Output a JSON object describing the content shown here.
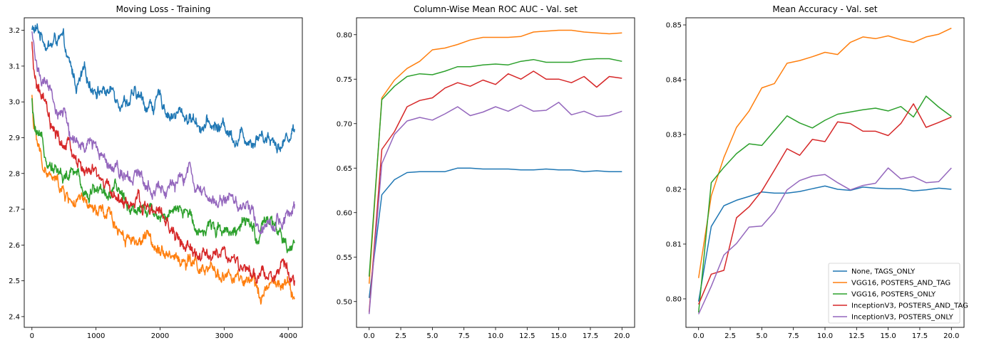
{
  "colors": {
    "blue": "#1f77b4",
    "orange": "#ff7f0e",
    "green": "#2ca02c",
    "red": "#d62728",
    "purple": "#9467bd"
  },
  "chart_data": [
    {
      "type": "line",
      "title": "Moving Loss - Training",
      "xlabel": "",
      "ylabel": "",
      "xlim": [
        -120,
        4220
      ],
      "ylim": [
        2.37,
        3.235
      ],
      "xticks": [
        0,
        1000,
        2000,
        3000,
        4000
      ],
      "yticks": [
        2.4,
        2.5,
        2.6,
        2.7,
        2.8,
        2.9,
        3.0,
        3.1,
        3.2
      ],
      "legend": false,
      "grid": false,
      "noisy": true,
      "series": [
        {
          "color": "blue",
          "x": [
            0,
            100,
            200,
            300,
            400,
            500,
            550,
            600,
            700,
            800,
            900,
            1000,
            1200,
            1500,
            1800,
            2000,
            2200,
            2400,
            2600,
            2800,
            3000,
            3200,
            3400,
            3600,
            3800,
            3900,
            3950,
            4000,
            4100
          ],
          "y": [
            3.2,
            3.19,
            3.18,
            3.16,
            3.18,
            3.15,
            3.1,
            3.08,
            3.04,
            3.06,
            3.05,
            3.05,
            3.03,
            3.02,
            2.99,
            3.0,
            2.97,
            2.96,
            2.95,
            2.93,
            2.93,
            2.91,
            2.91,
            2.92,
            2.9,
            2.88,
            2.9,
            2.91,
            2.93
          ]
        },
        {
          "color": "orange",
          "x": [
            0,
            30,
            80,
            150,
            250,
            350,
            450,
            500,
            600,
            800,
            1000,
            1200,
            1500,
            1800,
            2000,
            2200,
            2400,
            2600,
            2700,
            2800,
            3000,
            3200,
            3400,
            3500,
            3600,
            3800,
            4000,
            4100
          ],
          "y": [
            3.02,
            2.93,
            2.88,
            2.83,
            2.8,
            2.77,
            2.76,
            2.74,
            2.73,
            2.7,
            2.68,
            2.67,
            2.63,
            2.61,
            2.61,
            2.58,
            2.55,
            2.54,
            2.51,
            2.51,
            2.52,
            2.5,
            2.47,
            2.46,
            2.48,
            2.48,
            2.48,
            2.45
          ]
        },
        {
          "color": "green",
          "x": [
            0,
            30,
            100,
            200,
            300,
            400,
            500,
            700,
            800,
            1000,
            1200,
            1400,
            1500,
            1700,
            2000,
            2200,
            2400,
            2600,
            2800,
            3000,
            3200,
            3400,
            3500,
            3600,
            3800,
            3900,
            4000,
            4100
          ],
          "y": [
            3.0,
            2.93,
            2.88,
            2.85,
            2.85,
            2.82,
            2.79,
            2.79,
            2.76,
            2.76,
            2.75,
            2.73,
            2.72,
            2.71,
            2.7,
            2.68,
            2.68,
            2.66,
            2.65,
            2.66,
            2.65,
            2.64,
            2.62,
            2.63,
            2.65,
            2.6,
            2.57,
            2.59
          ]
        },
        {
          "color": "red",
          "x": [
            0,
            20,
            100,
            200,
            300,
            400,
            500,
            600,
            800,
            1000,
            1200,
            1500,
            1800,
            2000,
            2200,
            2400,
            2600,
            2800,
            3000,
            3200,
            3400,
            3500,
            3600,
            3800,
            4000,
            4100
          ],
          "y": [
            3.16,
            3.08,
            3.03,
            2.98,
            2.91,
            2.88,
            2.87,
            2.86,
            2.81,
            2.78,
            2.75,
            2.72,
            2.7,
            2.68,
            2.63,
            2.59,
            2.56,
            2.56,
            2.58,
            2.55,
            2.51,
            2.49,
            2.52,
            2.53,
            2.51,
            2.51
          ]
        },
        {
          "color": "purple",
          "x": [
            0,
            50,
            100,
            200,
            300,
            400,
            500,
            600,
            700,
            800,
            1000,
            1200,
            1400,
            1600,
            1800,
            2000,
            2200,
            2400,
            2450,
            2600,
            2800,
            3000,
            3200,
            3400,
            3500,
            3600,
            3800,
            4000,
            4100
          ],
          "y": [
            3.19,
            3.13,
            3.1,
            3.04,
            3.0,
            2.97,
            2.97,
            2.91,
            2.87,
            2.86,
            2.88,
            2.85,
            2.82,
            2.81,
            2.78,
            2.78,
            2.75,
            2.78,
            2.82,
            2.74,
            2.72,
            2.73,
            2.72,
            2.71,
            2.68,
            2.66,
            2.67,
            2.68,
            2.7
          ]
        }
      ]
    },
    {
      "type": "line",
      "title": "Column-Wise Mean ROC AUC - Val. set",
      "xlabel": "",
      "ylabel": "",
      "xlim": [
        -1.0,
        21.0
      ],
      "ylim": [
        0.471,
        0.819
      ],
      "xticks": [
        0.0,
        2.5,
        5.0,
        7.5,
        10.0,
        12.5,
        15.0,
        17.5,
        20.0
      ],
      "yticks": [
        0.5,
        0.55,
        0.6,
        0.65,
        0.7,
        0.75,
        0.8
      ],
      "legend": false,
      "grid": false,
      "noisy": false,
      "series": [
        {
          "color": "blue",
          "x": [
            0,
            1,
            2,
            3,
            4,
            5,
            6,
            7,
            8,
            9,
            10,
            11,
            12,
            13,
            14,
            15,
            16,
            17,
            18,
            19,
            20
          ],
          "y": [
            0.504,
            0.62,
            0.637,
            0.645,
            0.646,
            0.646,
            0.646,
            0.65,
            0.65,
            0.649,
            0.649,
            0.649,
            0.648,
            0.648,
            0.649,
            0.648,
            0.648,
            0.646,
            0.647,
            0.646,
            0.646
          ]
        },
        {
          "color": "orange",
          "x": [
            0,
            1,
            2,
            3,
            4,
            5,
            6,
            7,
            8,
            9,
            10,
            11,
            12,
            13,
            14,
            15,
            16,
            17,
            18,
            19,
            20
          ],
          "y": [
            0.52,
            0.729,
            0.749,
            0.762,
            0.77,
            0.783,
            0.785,
            0.789,
            0.794,
            0.797,
            0.797,
            0.797,
            0.798,
            0.803,
            0.804,
            0.805,
            0.805,
            0.803,
            0.802,
            0.801,
            0.802
          ]
        },
        {
          "color": "green",
          "x": [
            0,
            1,
            2,
            3,
            4,
            5,
            6,
            7,
            8,
            9,
            10,
            11,
            12,
            13,
            14,
            15,
            16,
            17,
            18,
            19,
            20
          ],
          "y": [
            0.528,
            0.727,
            0.742,
            0.753,
            0.756,
            0.755,
            0.759,
            0.764,
            0.764,
            0.766,
            0.767,
            0.766,
            0.77,
            0.772,
            0.769,
            0.769,
            0.769,
            0.772,
            0.773,
            0.773,
            0.77
          ]
        },
        {
          "color": "red",
          "x": [
            0,
            1,
            2,
            3,
            4,
            5,
            6,
            7,
            8,
            9,
            10,
            11,
            12,
            13,
            14,
            15,
            16,
            17,
            18,
            19,
            20
          ],
          "y": [
            0.488,
            0.671,
            0.691,
            0.719,
            0.726,
            0.729,
            0.74,
            0.746,
            0.742,
            0.749,
            0.744,
            0.756,
            0.75,
            0.759,
            0.75,
            0.75,
            0.746,
            0.753,
            0.741,
            0.753,
            0.751
          ]
        },
        {
          "color": "purple",
          "x": [
            0,
            1,
            2,
            3,
            4,
            5,
            6,
            7,
            8,
            9,
            10,
            11,
            12,
            13,
            14,
            15,
            16,
            17,
            18,
            19,
            20
          ],
          "y": [
            0.486,
            0.655,
            0.688,
            0.703,
            0.707,
            0.704,
            0.711,
            0.719,
            0.709,
            0.713,
            0.719,
            0.714,
            0.721,
            0.714,
            0.715,
            0.724,
            0.71,
            0.714,
            0.708,
            0.709,
            0.714
          ]
        }
      ]
    },
    {
      "type": "line",
      "title": "Mean Accuracy - Val. set",
      "xlabel": "",
      "ylabel": "",
      "xlim": [
        -1.0,
        21.0
      ],
      "ylim": [
        0.7948,
        0.8513
      ],
      "xticks": [
        0.0,
        2.5,
        5.0,
        7.5,
        10.0,
        12.5,
        15.0,
        17.5,
        20.0
      ],
      "yticks": [
        0.8,
        0.81,
        0.82,
        0.83,
        0.84,
        0.85
      ],
      "legend": true,
      "legend_loc": "lower-right",
      "grid": false,
      "noisy": false,
      "series": [
        {
          "name": "None, TAGS_ONLY",
          "color": "blue",
          "x": [
            0,
            1,
            2,
            3,
            4,
            5,
            6,
            7,
            8,
            9,
            10,
            11,
            12,
            13,
            14,
            15,
            16,
            17,
            18,
            19,
            20
          ],
          "y": [
            0.7995,
            0.8132,
            0.817,
            0.818,
            0.8187,
            0.8195,
            0.8193,
            0.8193,
            0.8196,
            0.8201,
            0.8206,
            0.82,
            0.8198,
            0.8204,
            0.8202,
            0.8201,
            0.8201,
            0.8197,
            0.8199,
            0.8202,
            0.82
          ]
        },
        {
          "name": "VGG16, POSTERS_AND_TAG",
          "color": "orange",
          "x": [
            0,
            1,
            2,
            3,
            4,
            5,
            6,
            7,
            8,
            9,
            10,
            11,
            12,
            13,
            14,
            15,
            16,
            17,
            18,
            19,
            20
          ],
          "y": [
            0.8038,
            0.8188,
            0.8258,
            0.8313,
            0.8343,
            0.8385,
            0.8393,
            0.843,
            0.8435,
            0.8442,
            0.845,
            0.8446,
            0.8468,
            0.8478,
            0.8475,
            0.848,
            0.8473,
            0.8468,
            0.8478,
            0.8483,
            0.8494
          ]
        },
        {
          "name": "VGG16, POSTERS_ONLY",
          "color": "green",
          "x": [
            0,
            1,
            2,
            3,
            4,
            5,
            6,
            7,
            8,
            9,
            10,
            11,
            12,
            13,
            14,
            15,
            16,
            17,
            18,
            19,
            20
          ],
          "y": [
            0.7975,
            0.8212,
            0.824,
            0.8265,
            0.8283,
            0.828,
            0.8307,
            0.8334,
            0.8321,
            0.8312,
            0.8326,
            0.8337,
            0.8341,
            0.8345,
            0.8348,
            0.8343,
            0.8351,
            0.8332,
            0.837,
            0.835,
            0.8333
          ]
        },
        {
          "name": "InceptionV3, POSTERS_AND_TAG",
          "color": "red",
          "x": [
            0,
            1,
            2,
            3,
            4,
            5,
            6,
            7,
            8,
            9,
            10,
            11,
            12,
            13,
            14,
            15,
            16,
            17,
            18,
            19,
            20
          ],
          "y": [
            0.799,
            0.8045,
            0.8052,
            0.8148,
            0.8168,
            0.8197,
            0.8235,
            0.8274,
            0.8262,
            0.8291,
            0.8287,
            0.8323,
            0.832,
            0.8306,
            0.8306,
            0.8298,
            0.832,
            0.8356,
            0.8313,
            0.8322,
            0.8332
          ]
        },
        {
          "name": "InceptionV3, POSTERS_ONLY",
          "color": "purple",
          "x": [
            0,
            1,
            2,
            3,
            4,
            5,
            6,
            7,
            8,
            9,
            10,
            11,
            12,
            13,
            14,
            15,
            16,
            17,
            18,
            19,
            20
          ],
          "y": [
            0.7972,
            0.8023,
            0.808,
            0.8101,
            0.8131,
            0.8133,
            0.8159,
            0.8199,
            0.8216,
            0.8224,
            0.8227,
            0.8212,
            0.8199,
            0.8207,
            0.8211,
            0.8239,
            0.8219,
            0.8223,
            0.8212,
            0.8214,
            0.8239
          ]
        }
      ]
    }
  ]
}
